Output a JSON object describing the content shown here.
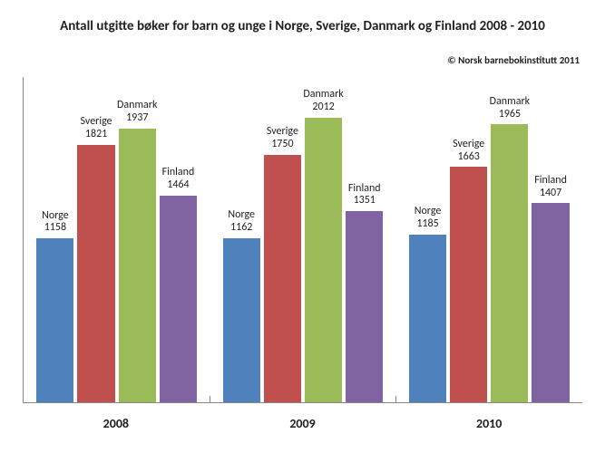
{
  "chart": {
    "type": "bar",
    "title": "Antall utgitte bøker for barn og unge i Norge, Sverige, Danmark og Finland 2008 - 2010",
    "title_fontsize": 15,
    "copyright": "© Norsk barnebokinstitutt 2011",
    "copyright_fontsize": 11,
    "background_color": "#ffffff",
    "axis_color": "#878787",
    "text_color": "#1f1f1f",
    "label_fontsize": 12,
    "xaxis_label_fontsize": 14,
    "y_max": 2300,
    "categories": [
      "2008",
      "2009",
      "2010"
    ],
    "series": [
      {
        "name": "Norge",
        "color": "#4f81bd"
      },
      {
        "name": "Sverige",
        "color": "#c0504d"
      },
      {
        "name": "Danmark",
        "color": "#9bbb59"
      },
      {
        "name": "Finland",
        "color": "#8064a2"
      }
    ],
    "data": [
      [
        1158,
        1821,
        1937,
        1464
      ],
      [
        1162,
        1750,
        2012,
        1351
      ],
      [
        1185,
        1663,
        1965,
        1407
      ]
    ]
  }
}
